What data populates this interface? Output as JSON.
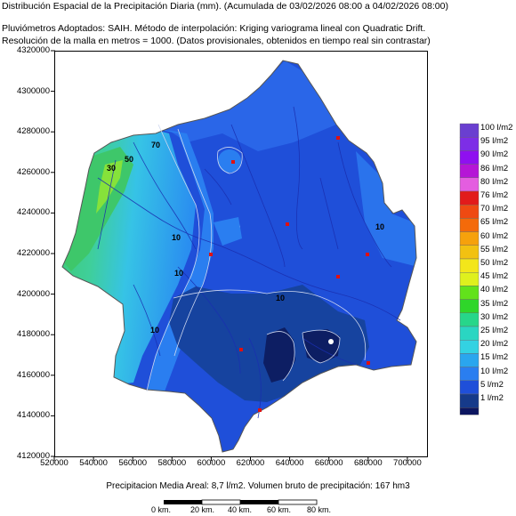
{
  "header": {
    "title": "Distribución Espacial de la Precipitación Diaria (mm). (Acumulada de 03/02/2026 08:00 a 04/02/2026 08:00)",
    "method": "Pluviómetros Adoptados: SAIH.  Método de interpolación: Kriging variograma lineal con Quadratic Drift.",
    "resolution": "Resolución de la malla en metros = 1000. (Datos provisionales, obtenidos en tiempo real sin contrastar)"
  },
  "map": {
    "x_ticks": [
      "520000",
      "540000",
      "560000",
      "580000",
      "600000",
      "620000",
      "640000",
      "660000",
      "680000",
      "700000"
    ],
    "y_ticks": [
      "4320000",
      "4300000",
      "4280000",
      "4260000",
      "4240000",
      "4220000",
      "4200000",
      "4180000",
      "4160000",
      "4140000",
      "4120000"
    ],
    "x_range": [
      520000,
      710000
    ],
    "y_range": [
      4120000,
      4320000
    ],
    "contour_labels": [
      "70",
      "50",
      "30",
      "10",
      "10",
      "10",
      "10",
      "10"
    ],
    "colors": {
      "base_blue": "#1f4fd9",
      "mid_blue": "#2a66e8",
      "light_blue": "#3d8cef",
      "dark_basin": "#16439f",
      "darkest": "#0d1e63",
      "cyan": "#3fd0e6",
      "green": "#3ec76a"
    }
  },
  "legend": {
    "items": [
      {
        "label": "100 l/m2",
        "color": "#6a3fd0"
      },
      {
        "label": "95 l/m2",
        "color": "#7d2ee6"
      },
      {
        "label": "90 l/m2",
        "color": "#8f10f0"
      },
      {
        "label": "86 l/m2",
        "color": "#b516d6"
      },
      {
        "label": "80 l/m2",
        "color": "#e45de0"
      },
      {
        "label": "76 l/m2",
        "color": "#e21b1b"
      },
      {
        "label": "70 l/m2",
        "color": "#ef4a12"
      },
      {
        "label": "65 l/m2",
        "color": "#f46a0a"
      },
      {
        "label": "60 l/m2",
        "color": "#f6a10c"
      },
      {
        "label": "55 l/m2",
        "color": "#f2c111"
      },
      {
        "label": "50 l/m2",
        "color": "#f3e61a"
      },
      {
        "label": "45 l/m2",
        "color": "#dff01e"
      },
      {
        "label": "40 l/m2",
        "color": "#62e21b"
      },
      {
        "label": "35 l/m2",
        "color": "#2fd62a"
      },
      {
        "label": "30 l/m2",
        "color": "#27d68a"
      },
      {
        "label": "25 l/m2",
        "color": "#2ad6c2"
      },
      {
        "label": "20 l/m2",
        "color": "#33d2e2"
      },
      {
        "label": "15 l/m2",
        "color": "#2aa6ee"
      },
      {
        "label": "10 l/m2",
        "color": "#2a7ef0"
      },
      {
        "label": "5 l/m2",
        "color": "#1f4fd9"
      },
      {
        "label": "1 l/m2",
        "color": "#163a8a"
      }
    ],
    "extra_bottom": "#0c1660"
  },
  "footer": {
    "summary": "Precipitacion Media Areal: 8,7 l/m2. Volumen bruto de precipitación: 167 hm3",
    "scale_labels": [
      "0 km.",
      "20 km.",
      "40 km.",
      "60 km.",
      "80 km."
    ]
  }
}
